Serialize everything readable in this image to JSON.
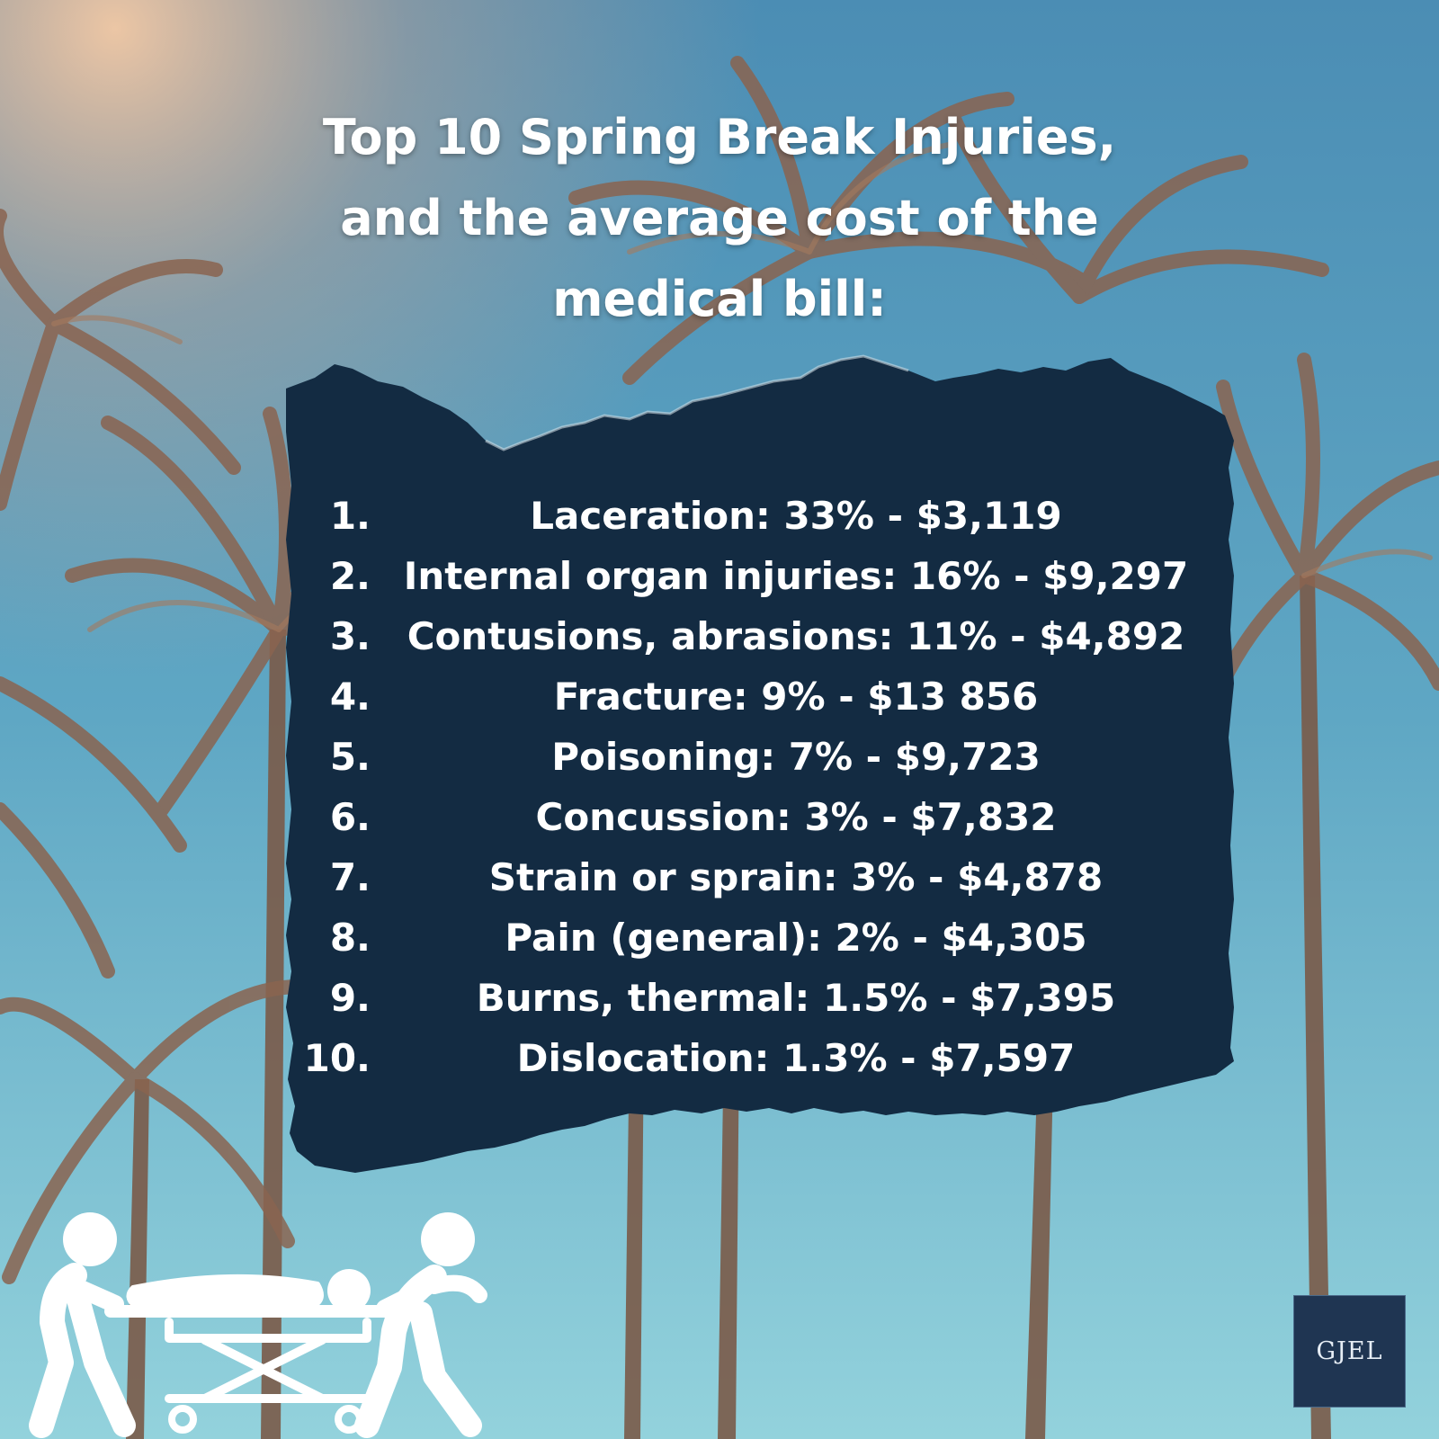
{
  "title": {
    "line1": "Top 10 Spring Break Injuries,",
    "line2": "and the average cost of the",
    "line3": "medical bill:"
  },
  "injuries": [
    {
      "num": "1.",
      "text": "Laceration: 33% - $3,119"
    },
    {
      "num": "2.",
      "text": "Internal organ injuries: 16% - $9,297"
    },
    {
      "num": "3.",
      "text": "Contusions, abrasions: 11% - $4,892"
    },
    {
      "num": "4.",
      "text": "Fracture: 9% - $13 856"
    },
    {
      "num": "5.",
      "text": "Poisoning: 7% - $9,723"
    },
    {
      "num": "6.",
      "text": "Concussion: 3% - $7,832"
    },
    {
      "num": "7.",
      "text": "Strain or sprain: 3% - $4,878"
    },
    {
      "num": "8.",
      "text": "Pain (general): 2% - $4,305"
    },
    {
      "num": "9.",
      "text": "Burns, thermal: 1.5% - $7,395"
    },
    {
      "num": "10.",
      "text": "Dislocation: 1.3% - $7,597"
    }
  ],
  "logo": {
    "text": "GJEL"
  },
  "colors": {
    "panel": "#132b42",
    "sky_top": "#4f93b8",
    "sky_bottom": "#8fd0dc",
    "text": "#ffffff",
    "logo_bg": "#1f3552"
  },
  "icons": {
    "background": "palm-trees-image",
    "illustration": "stretcher-icon"
  }
}
